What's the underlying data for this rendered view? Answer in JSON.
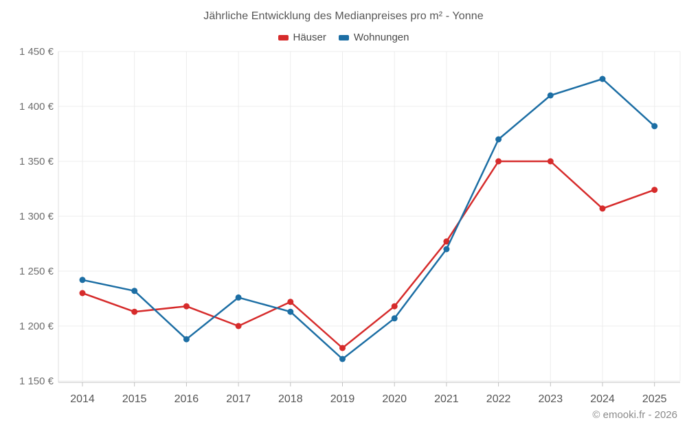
{
  "chart_data": {
    "type": "line",
    "title": "Jährliche Entwicklung des Medianpreises pro m² - Yonne",
    "x": [
      2014,
      2015,
      2016,
      2017,
      2018,
      2019,
      2020,
      2021,
      2022,
      2023,
      2024,
      2025
    ],
    "series": [
      {
        "name": "Häuser",
        "color": "#d62b2b",
        "values": [
          1230,
          1213,
          1218,
          1200,
          1222,
          1180,
          1218,
          1277,
          1350,
          1350,
          1307,
          1324
        ]
      },
      {
        "name": "Wohnungen",
        "color": "#1c6ea4",
        "values": [
          1242,
          1232,
          1188,
          1226,
          1213,
          1170,
          1207,
          1270,
          1370,
          1410,
          1425,
          1382
        ]
      }
    ],
    "xlabel": "",
    "ylabel": "",
    "ylim": [
      1150,
      1450
    ],
    "ytick_step": 50,
    "ytick_suffix": " €",
    "grid": true,
    "legend_position": "top"
  },
  "footer": {
    "copyright": "© emooki.fr - 2026"
  },
  "colors": {
    "grid": "#ececec",
    "axis": "#c0c0c0",
    "left_axis": "#dcdcdc",
    "y_tick_text": "#6e6e6e",
    "x_tick_text": "#545454",
    "title_text": "#565656",
    "footer_text": "#8a8a8a"
  }
}
